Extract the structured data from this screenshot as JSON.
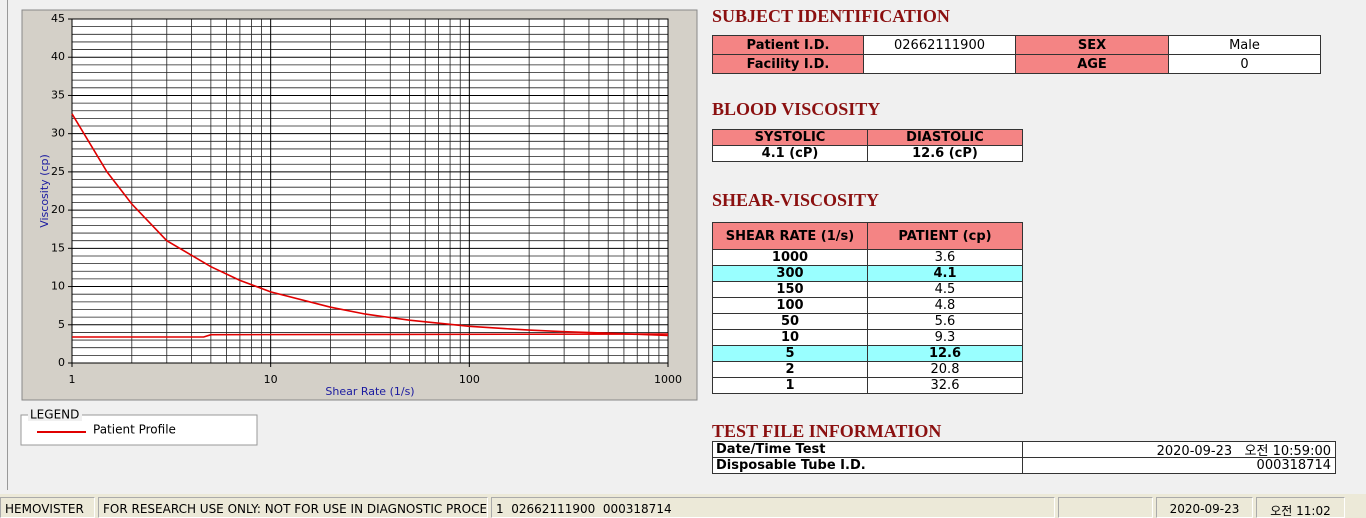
{
  "chart_data": {
    "type": "line",
    "xlabel": "Shear Rate (1/s)",
    "ylabel": "Viscosity (cp)",
    "xscale": "log",
    "xlim": [
      1,
      1000
    ],
    "xticks": [
      1,
      10,
      100,
      1000
    ],
    "xminorticks": [
      2,
      3,
      4,
      5,
      6,
      7,
      8,
      9,
      20,
      30,
      40,
      50,
      60,
      70,
      80,
      90,
      200,
      300,
      400,
      500,
      600,
      700,
      800,
      900
    ],
    "ylim": [
      0,
      45
    ],
    "yticks": [
      0,
      5,
      10,
      15,
      20,
      25,
      30,
      35,
      40,
      45
    ],
    "yminorticks": [
      1,
      2,
      3,
      4,
      6,
      7,
      8,
      9,
      11,
      12,
      13,
      14,
      16,
      17,
      18,
      19,
      21,
      22,
      23,
      24,
      26,
      27,
      28,
      29,
      31,
      32,
      33,
      34,
      36,
      37,
      38,
      39,
      41,
      42,
      43,
      44
    ],
    "grid": true,
    "legend_title": "LEGEND",
    "series": [
      {
        "name": "Patient Profile",
        "color": "#e00000",
        "x": [
          1,
          1.5,
          2,
          3,
          5,
          7,
          10,
          20,
          30,
          50,
          100,
          150,
          200,
          300,
          500,
          1000
        ],
        "values": [
          32.6,
          25,
          20.8,
          16,
          12.6,
          10.8,
          9.3,
          7.3,
          6.4,
          5.6,
          4.8,
          4.5,
          4.3,
          4.1,
          3.9,
          3.6
        ]
      },
      {
        "color": "#e00000",
        "x": [
          1,
          4.6,
          5,
          1000
        ],
        "values": [
          3.4,
          3.4,
          3.7,
          3.8
        ]
      }
    ]
  },
  "subject_identification": {
    "title": "SUBJECT IDENTIFICATION",
    "rows": [
      [
        "Patient I.D.",
        "02662111900",
        "SEX",
        "Male"
      ],
      [
        "Facility I.D.",
        null,
        "AGE",
        "0"
      ]
    ]
  },
  "blood_viscosity": {
    "title": "BLOOD VISCOSITY",
    "header": [
      "SYSTOLIC",
      "DIASTOLIC"
    ],
    "values": [
      "4.1 (cP)",
      "12.6 (cP)"
    ]
  },
  "shear_viscosity": {
    "title": "SHEAR-VISCOSITY",
    "header": [
      "SHEAR RATE (1/s)",
      "PATIENT (cp)"
    ],
    "rows": [
      [
        "1000",
        "3.6"
      ],
      [
        "300",
        "4.1"
      ],
      [
        "150",
        "4.5"
      ],
      [
        "100",
        "4.8"
      ],
      [
        "50",
        "5.6"
      ],
      [
        "10",
        "9.3"
      ],
      [
        "5",
        "12.6"
      ],
      [
        "2",
        "20.8"
      ],
      [
        "1",
        "32.6"
      ]
    ],
    "highlight_rows": [
      1,
      6
    ],
    "highlight_color": "#99ffff"
  },
  "test_file_information": {
    "title": "TEST FILE INFORMATION",
    "rows": [
      [
        "Date/Time Test",
        "2020-09-23   오전 10:59:00"
      ],
      [
        "Disposable Tube I.D.",
        "000318714"
      ]
    ]
  },
  "status_bar": [
    "HEMOVISTER",
    "FOR RESEARCH USE ONLY: NOT FOR USE IN DIAGNOSTIC PROCEDURES",
    "1  02662111900  000318714",
    null,
    "2020-09-23",
    "오전 11:02"
  ]
}
